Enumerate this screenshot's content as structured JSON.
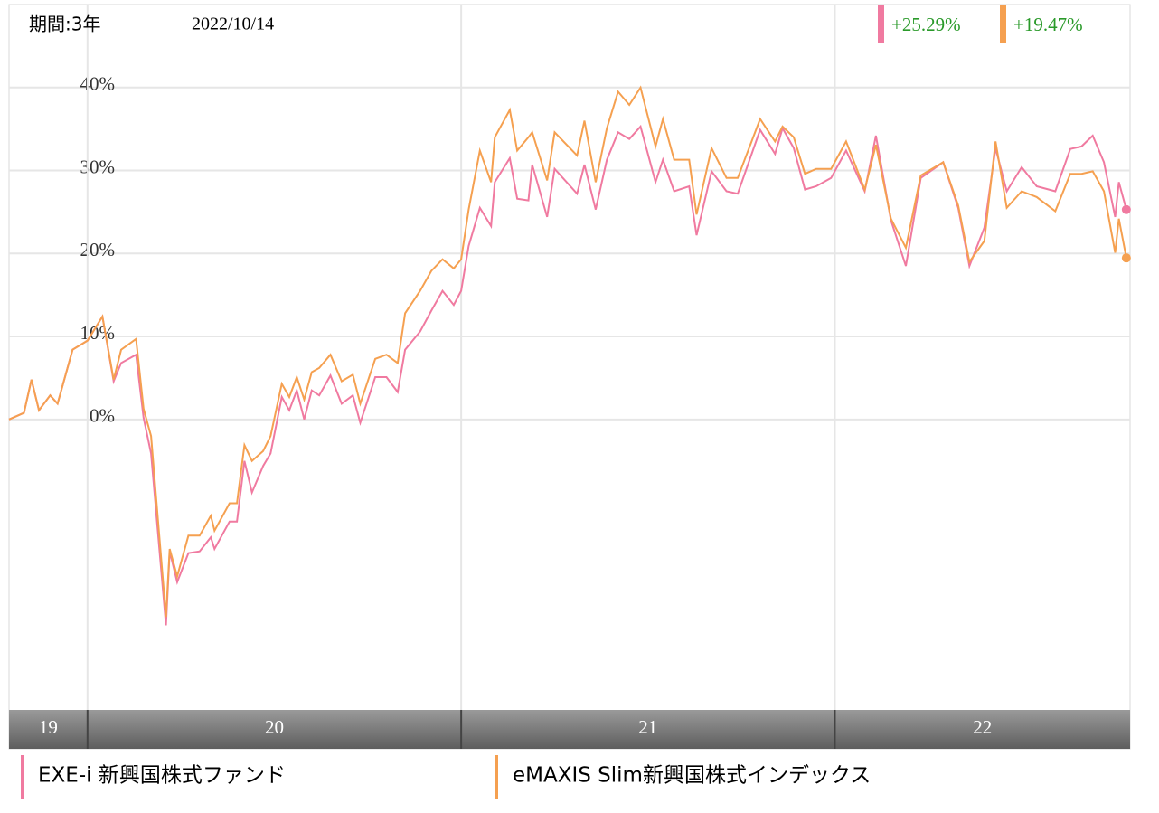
{
  "chart_data": {
    "type": "line",
    "period_label": "期間:3年",
    "date_label": "2022/10/14",
    "xlim": [
      2019.79,
      2022.79
    ],
    "ylim": [
      -35,
      50
    ],
    "yticks": [
      {
        "value": 0,
        "label": "0%"
      },
      {
        "value": 10,
        "label": "10%"
      },
      {
        "value": 20,
        "label": "20%"
      },
      {
        "value": 30,
        "label": "30%"
      },
      {
        "value": 40,
        "label": "40%"
      }
    ],
    "grid": true,
    "year_bands": [
      {
        "label": "19",
        "start": 2019.79,
        "end": 2020
      },
      {
        "label": "20",
        "start": 2020,
        "end": 2021
      },
      {
        "label": "21",
        "start": 2021,
        "end": 2022
      },
      {
        "label": "22",
        "start": 2022,
        "end": 2022.79
      }
    ],
    "x": [
      2019.79,
      2019.83,
      2019.85,
      2019.87,
      2019.9,
      2019.92,
      2019.96,
      2020.0,
      2020.04,
      2020.07,
      2020.09,
      2020.13,
      2020.15,
      2020.17,
      2020.21,
      2020.22,
      2020.24,
      2020.27,
      2020.3,
      2020.33,
      2020.34,
      2020.38,
      2020.4,
      2020.42,
      2020.44,
      2020.47,
      2020.49,
      2020.52,
      2020.54,
      2020.56,
      2020.58,
      2020.6,
      2020.62,
      2020.65,
      2020.68,
      2020.71,
      2020.73,
      2020.77,
      2020.8,
      2020.83,
      2020.85,
      2020.89,
      2020.92,
      2020.95,
      2020.98,
      2021.0,
      2021.02,
      2021.05,
      2021.08,
      2021.09,
      2021.13,
      2021.15,
      2021.18,
      2021.19,
      2021.23,
      2021.25,
      2021.31,
      2021.33,
      2021.36,
      2021.39,
      2021.42,
      2021.45,
      2021.48,
      2021.52,
      2021.54,
      2021.57,
      2021.61,
      2021.63,
      2021.67,
      2021.71,
      2021.74,
      2021.8,
      2021.84,
      2021.86,
      2021.89,
      2021.92,
      2021.95,
      2021.99,
      2022.03,
      2022.08,
      2022.11,
      2022.15,
      2022.19,
      2022.23,
      2022.29,
      2022.33,
      2022.36,
      2022.4,
      2022.43,
      2022.46,
      2022.5,
      2022.54,
      2022.59,
      2022.63,
      2022.66,
      2022.69,
      2022.72,
      2022.75,
      2022.76,
      2022.78
    ],
    "series": [
      {
        "name": "EXE-i 新興国株式ファンド",
        "color": "#f07aa0",
        "return_label": "+25.29%",
        "values": [
          0,
          0.8,
          4.8,
          1.1,
          2.9,
          1.9,
          8.4,
          9.5,
          12.4,
          4.6,
          6.8,
          7.8,
          0.2,
          -4.1,
          -24.8,
          -15.9,
          -19.6,
          -16.1,
          -15.9,
          -14.2,
          -15.6,
          -12.3,
          -12.3,
          -5,
          -8.8,
          -5.6,
          -4.1,
          2.7,
          1.1,
          3.5,
          0,
          3.5,
          2.9,
          5.3,
          1.9,
          2.9,
          -0.4,
          5.1,
          5.1,
          3.3,
          8.4,
          10.6,
          13.1,
          15.5,
          13.8,
          15.5,
          20.9,
          25.5,
          23.3,
          28.6,
          31.5,
          26.6,
          26.4,
          30.7,
          24.4,
          30.2,
          27.2,
          30.7,
          25.3,
          31.3,
          34.6,
          33.8,
          35.3,
          28.6,
          31.3,
          27.5,
          28.1,
          22.2,
          29.9,
          27.5,
          27.2,
          34.9,
          32,
          35.1,
          32.7,
          27.7,
          28.1,
          29.1,
          32.4,
          27.5,
          34.2,
          24,
          18.5,
          29.1,
          31,
          25.5,
          18.5,
          23.1,
          32.7,
          27.5,
          30.4,
          28.1,
          27.5,
          32.6,
          32.9,
          34.2,
          31,
          24.4,
          28.6,
          25.29
        ]
      },
      {
        "name": "eMAXIS Slim新興国株式インデックス",
        "color": "#f5a050",
        "return_label": "+19.47%",
        "values": [
          0,
          0.8,
          4.8,
          1.1,
          2.9,
          1.9,
          8.4,
          9.5,
          12.4,
          4.8,
          8.4,
          9.7,
          1.3,
          -2,
          -23.8,
          -15.6,
          -18.9,
          -14,
          -14,
          -11.6,
          -13.4,
          -10.1,
          -10.1,
          -3.1,
          -5,
          -3.8,
          -2,
          4.3,
          2.7,
          5.1,
          2.4,
          5.7,
          6.2,
          7.8,
          4.6,
          5.4,
          1.9,
          7.3,
          7.8,
          6.8,
          12.8,
          15.5,
          17.9,
          19.3,
          18.2,
          19.3,
          25.3,
          32.4,
          28.6,
          34,
          37.3,
          32.4,
          34,
          34.6,
          28.8,
          34.6,
          31.8,
          36,
          28.6,
          35.1,
          39.5,
          37.9,
          40,
          32.9,
          36.2,
          31.3,
          31.3,
          24.7,
          32.7,
          29.1,
          29.1,
          36.2,
          33.5,
          35.3,
          34,
          29.6,
          30.2,
          30.2,
          33.5,
          27.7,
          33.1,
          24.2,
          20.7,
          29.4,
          31,
          25.8,
          19,
          21.5,
          33.5,
          25.5,
          27.5,
          26.8,
          25.1,
          29.6,
          29.6,
          29.9,
          27.5,
          20.1,
          24.2,
          19.47
        ]
      }
    ]
  }
}
